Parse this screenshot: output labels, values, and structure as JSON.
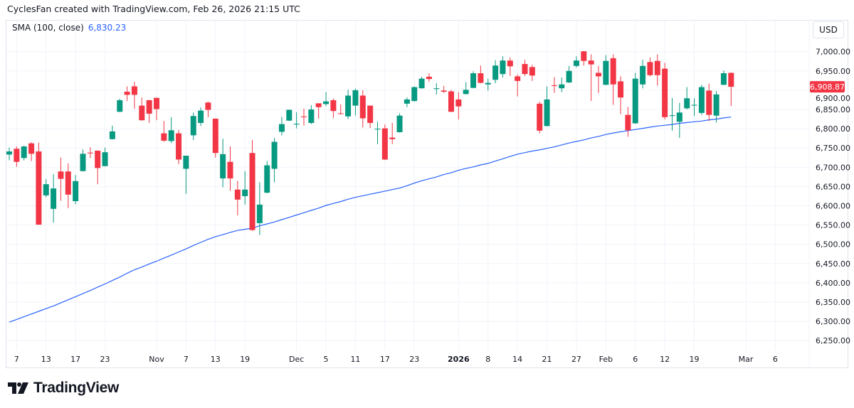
{
  "header": {
    "title": "CyclesFan created with TradingView.com, Feb 26, 2026 21:15 UTC"
  },
  "legend": {
    "indicator": "SMA (100, close)",
    "value": "6,830.23"
  },
  "currency_button": "USD",
  "logo": {
    "text": "TradingView",
    "icon": "tradingview-logo-icon"
  },
  "colors": {
    "up": "#089981",
    "down": "#F23645",
    "sma": "#2962FF",
    "grid": "#f0f3fa",
    "text": "#131722"
  },
  "chart_data": {
    "type": "candlestick",
    "ylim": [
      6225,
      7025
    ],
    "grid": true,
    "y_ticks": [
      "7,000.00",
      "6,950.00",
      "6,900.00",
      "6,850.00",
      "6,800.00",
      "6,750.00",
      "6,700.00",
      "6,650.00",
      "6,600.00",
      "6,550.00",
      "6,500.00",
      "6,450.00",
      "6,400.00",
      "6,350.00",
      "6,300.00",
      "6,250.00"
    ],
    "y_tick_values": [
      7000,
      6950,
      6900,
      6850,
      6800,
      6750,
      6700,
      6650,
      6600,
      6550,
      6500,
      6450,
      6400,
      6350,
      6300,
      6250
    ],
    "last_price": 6908.87,
    "last_price_label": "6,908.87",
    "x_ticks": [
      {
        "label": "7",
        "date": "2025-10-07"
      },
      {
        "label": "13",
        "date": "2025-10-13"
      },
      {
        "label": "17",
        "date": "2025-10-17"
      },
      {
        "label": "23",
        "date": "2025-10-23"
      },
      {
        "label": "Nov",
        "date": "2025-11-03"
      },
      {
        "label": "7",
        "date": "2025-11-07"
      },
      {
        "label": "13",
        "date": "2025-11-13"
      },
      {
        "label": "19",
        "date": "2025-11-19"
      },
      {
        "label": "Dec",
        "date": "2025-12-01"
      },
      {
        "label": "5",
        "date": "2025-12-05"
      },
      {
        "label": "11",
        "date": "2025-12-11"
      },
      {
        "label": "17",
        "date": "2025-12-17"
      },
      {
        "label": "23",
        "date": "2025-12-23"
      },
      {
        "label": "2026",
        "date": "2026-01-02"
      },
      {
        "label": "8",
        "date": "2026-01-08"
      },
      {
        "label": "14",
        "date": "2026-01-14"
      },
      {
        "label": "21",
        "date": "2026-01-21"
      },
      {
        "label": "27",
        "date": "2026-01-27"
      },
      {
        "label": "Feb",
        "date": "2026-02-02"
      },
      {
        "label": "6",
        "date": "2026-02-06"
      },
      {
        "label": "12",
        "date": "2026-02-12"
      },
      {
        "label": "19",
        "date": "2026-02-19"
      },
      {
        "label": "Mar",
        "date": "2026-03-02"
      },
      {
        "label": "6",
        "date": "2026-03-06"
      }
    ],
    "candle_fields": [
      "date",
      "open",
      "high",
      "low",
      "close"
    ],
    "candles": [
      [
        "2025-10-06",
        6733,
        6751,
        6718,
        6741
      ],
      [
        "2025-10-07",
        6748,
        6754,
        6701,
        6714
      ],
      [
        "2025-10-08",
        6724,
        6756,
        6718,
        6754
      ],
      [
        "2025-10-09",
        6762,
        6765,
        6716,
        6735
      ],
      [
        "2025-10-10",
        6741,
        6764,
        6551,
        6551
      ],
      [
        "2025-10-13",
        6627,
        6669,
        6622,
        6656
      ],
      [
        "2025-10-14",
        6592,
        6682,
        6556,
        6645
      ],
      [
        "2025-10-15",
        6689,
        6725,
        6613,
        6670
      ],
      [
        "2025-10-16",
        6689,
        6710,
        6594,
        6629
      ],
      [
        "2025-10-17",
        6612,
        6680,
        6604,
        6664
      ],
      [
        "2025-10-20",
        6690,
        6746,
        6689,
        6735
      ],
      [
        "2025-10-21",
        6738,
        6752,
        6724,
        6736
      ],
      [
        "2025-10-22",
        6743,
        6744,
        6656,
        6698
      ],
      [
        "2025-10-23",
        6703,
        6751,
        6702,
        6739
      ],
      [
        "2025-10-24",
        6773,
        6808,
        6772,
        6793
      ],
      [
        "2025-10-27",
        6844,
        6878,
        6843,
        6874
      ],
      [
        "2025-10-28",
        6896,
        6910,
        6872,
        6888
      ],
      [
        "2025-10-29",
        6910,
        6922,
        6852,
        6888
      ],
      [
        "2025-10-30",
        6860,
        6881,
        6821,
        6822
      ],
      [
        "2025-10-31",
        6874,
        6875,
        6815,
        6839
      ],
      [
        "2025-11-03",
        6880,
        6881,
        6822,
        6851
      ],
      [
        "2025-11-04",
        6788,
        6820,
        6766,
        6769
      ],
      [
        "2025-11-05",
        6768,
        6830,
        6763,
        6796
      ],
      [
        "2025-11-06",
        6788,
        6797,
        6708,
        6720
      ],
      [
        "2025-11-07",
        6696,
        6730,
        6631,
        6730
      ],
      [
        "2025-11-10",
        6783,
        6842,
        6771,
        6833
      ],
      [
        "2025-11-11",
        6815,
        6855,
        6807,
        6847
      ],
      [
        "2025-11-12",
        6868,
        6870,
        6830,
        6849
      ],
      [
        "2025-11-13",
        6826,
        6827,
        6725,
        6737
      ],
      [
        "2025-11-14",
        6671,
        6774,
        6648,
        6734
      ],
      [
        "2025-11-17",
        6714,
        6754,
        6639,
        6671
      ],
      [
        "2025-11-18",
        6642,
        6665,
        6575,
        6616
      ],
      [
        "2025-11-19",
        6625,
        6690,
        6603,
        6642
      ],
      [
        "2025-11-20",
        6737,
        6771,
        6535,
        6537
      ],
      [
        "2025-11-21",
        6555,
        6661,
        6524,
        6603
      ],
      [
        "2025-11-24",
        6634,
        6716,
        6632,
        6705
      ],
      [
        "2025-11-25",
        6696,
        6776,
        6661,
        6766
      ],
      [
        "2025-11-26",
        6792,
        6831,
        6783,
        6812
      ],
      [
        "2025-11-28",
        6821,
        6850,
        6820,
        6849
      ],
      [
        "2025-12-01",
        6811,
        6843,
        6801,
        6813
      ],
      [
        "2025-12-02",
        6832,
        6852,
        6808,
        6830
      ],
      [
        "2025-12-03",
        6815,
        6861,
        6812,
        6850
      ],
      [
        "2025-12-04",
        6866,
        6866,
        6826,
        6856
      ],
      [
        "2025-12-05",
        6864,
        6895,
        6859,
        6871
      ],
      [
        "2025-12-08",
        6874,
        6879,
        6828,
        6846
      ],
      [
        "2025-12-09",
        6840,
        6863,
        6837,
        6839
      ],
      [
        "2025-12-10",
        6832,
        6901,
        6825,
        6886
      ],
      [
        "2025-12-11",
        6860,
        6904,
        6834,
        6900
      ],
      [
        "2025-12-12",
        6886,
        6900,
        6803,
        6827
      ],
      [
        "2025-12-15",
        6860,
        6860,
        6802,
        6815
      ],
      [
        "2025-12-16",
        6798,
        6818,
        6760,
        6800
      ],
      [
        "2025-12-17",
        6801,
        6811,
        6719,
        6720
      ],
      [
        "2025-12-18",
        6777,
        6815,
        6760,
        6773
      ],
      [
        "2025-12-19",
        6791,
        6840,
        6790,
        6834
      ],
      [
        "2025-12-22",
        6865,
        6881,
        6856,
        6876
      ],
      [
        "2025-12-23",
        6872,
        6910,
        6870,
        6908
      ],
      [
        "2025-12-24",
        6905,
        6935,
        6904,
        6930
      ],
      [
        "2025-12-26",
        6935,
        6944,
        6922,
        6929
      ],
      [
        "2025-12-29",
        6903,
        6918,
        6889,
        6905
      ],
      [
        "2025-12-30",
        6899,
        6911,
        6893,
        6896
      ],
      [
        "2025-12-31",
        6897,
        6901,
        6843,
        6844
      ],
      [
        "2026-01-02",
        6876,
        6895,
        6824,
        6858
      ],
      [
        "2026-01-05",
        6890,
        6921,
        6889,
        6901
      ],
      [
        "2026-01-06",
        6906,
        6949,
        6905,
        6944
      ],
      [
        "2026-01-07",
        6944,
        6964,
        6918,
        6919
      ],
      [
        "2026-01-08",
        6915,
        6930,
        6899,
        6919
      ],
      [
        "2026-01-09",
        6927,
        6978,
        6918,
        6964
      ],
      [
        "2026-01-12",
        6942,
        6988,
        6933,
        6977
      ],
      [
        "2026-01-13",
        6977,
        6985,
        6937,
        6962
      ],
      [
        "2026-01-14",
        6936,
        6941,
        6884,
        6924
      ],
      [
        "2026-01-15",
        6968,
        6979,
        6937,
        6942
      ],
      [
        "2026-01-16",
        6960,
        6966,
        6924,
        6938
      ],
      [
        "2026-01-20",
        6865,
        6870,
        6788,
        6795
      ],
      [
        "2026-01-21",
        6807,
        6910,
        6806,
        6876
      ],
      [
        "2026-01-22",
        6913,
        6934,
        6893,
        6911
      ],
      [
        "2026-01-23",
        6905,
        6933,
        6895,
        6915
      ],
      [
        "2026-01-26",
        6920,
        6963,
        6919,
        6950
      ],
      [
        "2026-01-27",
        6963,
        6988,
        6959,
        6977
      ],
      [
        "2026-01-28",
        7001,
        7002,
        6964,
        6976
      ],
      [
        "2026-01-29",
        6977,
        6993,
        6872,
        6967
      ],
      [
        "2026-01-30",
        6945,
        6963,
        6893,
        6936
      ],
      [
        "2026-02-02",
        6914,
        6991,
        6913,
        6976
      ],
      [
        "2026-02-03",
        6983,
        6993,
        6862,
        6915
      ],
      [
        "2026-02-04",
        6923,
        6936,
        6838,
        6881
      ],
      [
        "2026-02-05",
        6836,
        6857,
        6779,
        6796
      ],
      [
        "2026-02-06",
        6814,
        6945,
        6813,
        6930
      ],
      [
        "2026-02-09",
        6915,
        6979,
        6905,
        6963
      ],
      [
        "2026-02-10",
        6973,
        6985,
        6936,
        6939
      ],
      [
        "2026-02-11",
        6976,
        6993,
        6912,
        6939
      ],
      [
        "2026-02-12",
        6956,
        6971,
        6824,
        6830
      ],
      [
        "2026-02-13",
        6833,
        6880,
        6795,
        6835
      ],
      [
        "2026-02-17",
        6818,
        6867,
        6776,
        6842
      ],
      [
        "2026-02-18",
        6853,
        6908,
        6850,
        6879
      ],
      [
        "2026-02-19",
        6860,
        6879,
        6833,
        6862
      ],
      [
        "2026-02-20",
        6841,
        6914,
        6836,
        6908
      ],
      [
        "2026-02-23",
        6899,
        6917,
        6820,
        6836
      ],
      [
        "2026-02-24",
        6834,
        6898,
        6816,
        6889
      ],
      [
        "2026-02-25",
        6914,
        6951,
        6913,
        6944
      ],
      [
        "2026-02-26",
        6945,
        6946,
        6859,
        6908.87
      ]
    ],
    "sma": [
      6298,
      6305,
      6312,
      6319,
      6326,
      6333,
      6340,
      6348,
      6356,
      6364,
      6372,
      6380,
      6389,
      6397,
      6406,
      6415,
      6425,
      6434,
      6441,
      6449,
      6456,
      6464,
      6472,
      6480,
      6488,
      6497,
      6505,
      6513,
      6520,
      6525,
      6531,
      6536,
      6539,
      6542,
      6548,
      6553,
      6558,
      6564,
      6570,
      6576,
      6582,
      6588,
      6594,
      6601,
      6606,
      6611,
      6617,
      6622,
      6626,
      6630,
      6634,
      6638,
      6642,
      6646,
      6652,
      6659,
      6665,
      6670,
      6675,
      6681,
      6686,
      6692,
      6697,
      6701,
      6706,
      6710,
      6716,
      6722,
      6728,
      6734,
      6738,
      6742,
      6745,
      6749,
      6753,
      6758,
      6763,
      6767,
      6771,
      6776,
      6780,
      6785,
      6789,
      6792,
      6795,
      6798,
      6801,
      6804,
      6807,
      6809,
      6811,
      6814,
      6816,
      6818,
      6820,
      6823,
      6825,
      6828,
      6830.23
    ]
  }
}
